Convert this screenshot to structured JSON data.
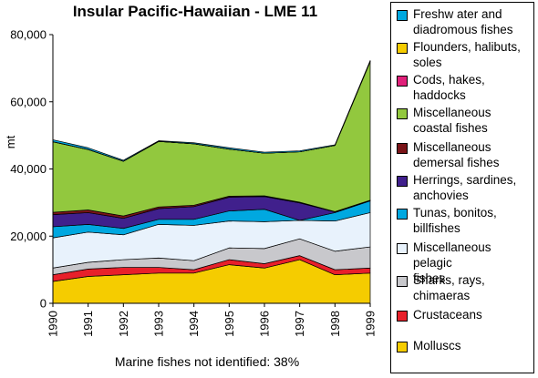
{
  "chart_data": {
    "type": "area",
    "stacked": true,
    "title": "Insular Pacific-Hawaiian - LME 11",
    "ylabel": "mt",
    "xlabel": "",
    "x": [
      "1990",
      "1991",
      "1992",
      "1993",
      "1994",
      "1995",
      "1996",
      "1997",
      "1998",
      "1999"
    ],
    "yticks": [
      "0",
      "20,000",
      "40,000",
      "60,000",
      "80,000"
    ],
    "ylim": [
      0,
      80000
    ],
    "grid": false,
    "legend_position": "right",
    "note": "Marine fishes not identified: 38%",
    "series": [
      {
        "name": "Molluscs",
        "color": "#F5CC00",
        "values": [
          6500,
          8000,
          8500,
          9000,
          9000,
          11500,
          10500,
          13000,
          8500,
          9000
        ]
      },
      {
        "name": "Crustaceans",
        "color": "#E8202A",
        "values": [
          2000,
          2200,
          2200,
          1700,
          1000,
          1500,
          1300,
          1200,
          1500,
          1500
        ]
      },
      {
        "name": "Sharks, rays, chimaeras",
        "color": "#C8C8CC",
        "values": [
          2000,
          2000,
          2300,
          2800,
          2700,
          3500,
          4500,
          5000,
          5500,
          6300
        ]
      },
      {
        "name": "Miscellaneous pelagic fishes",
        "color": "#E8F2FC",
        "values": [
          9000,
          9000,
          7400,
          10000,
          10500,
          8000,
          8000,
          5500,
          9000,
          10200
        ]
      },
      {
        "name": "Tunas, bonitos, billfishes",
        "color": "#00A8E0",
        "values": [
          3300,
          2300,
          1900,
          1500,
          1800,
          3000,
          3700,
          0,
          2500,
          3500
        ]
      },
      {
        "name": "Herrings, sardines, anchovies",
        "color": "#40208C",
        "values": [
          3600,
          3500,
          3000,
          3200,
          3800,
          4100,
          3800,
          5200,
          200,
          100
        ]
      },
      {
        "name": "Miscellaneous demersal fishes",
        "color": "#7A1418",
        "values": [
          700,
          800,
          700,
          500,
          400,
          300,
          200,
          200,
          100,
          100
        ]
      },
      {
        "name": "Miscellaneous coastal fishes",
        "color": "#92C83E",
        "values": [
          21000,
          18000,
          16300,
          19500,
          18300,
          14000,
          12700,
          15000,
          19700,
          41300
        ]
      },
      {
        "name": "Cods, hakes, haddocks",
        "color": "#E0207A",
        "values": [
          0,
          0,
          0,
          0,
          0,
          0,
          0,
          0,
          0,
          0
        ]
      },
      {
        "name": "Flounders, halibuts, soles",
        "color": "#F5CC00",
        "values": [
          0,
          0,
          0,
          0,
          0,
          0,
          0,
          0,
          0,
          0
        ]
      },
      {
        "name": "Freshwater and diadromous fishes",
        "color": "#00A8E0",
        "values": [
          600,
          500,
          300,
          200,
          300,
          400,
          300,
          300,
          200,
          300
        ]
      }
    ],
    "legend": [
      {
        "lines": [
          "Freshw ater and",
          "diadromous fishes"
        ],
        "color": "#00A8E0"
      },
      {
        "lines": [
          "Flounders, halibuts,",
          "soles"
        ],
        "color": "#F5CC00"
      },
      {
        "lines": [
          "Cods, hakes,",
          "haddocks"
        ],
        "color": "#E0207A"
      },
      {
        "lines": [
          "Miscellaneous",
          "coastal fishes"
        ],
        "color": "#92C83E"
      },
      {
        "lines": [
          "Miscellaneous",
          "demersal fishes"
        ],
        "color": "#7A1418"
      },
      {
        "lines": [
          "Herrings, sardines,",
          "anchovies"
        ],
        "color": "#40208C"
      },
      {
        "lines": [
          "Tunas, bonitos,",
          "billfishes"
        ],
        "color": "#00A8E0"
      },
      {
        "lines": [
          "Miscellaneous pelagic",
          "fishes"
        ],
        "color": "#E8F2FC"
      },
      {
        "lines": [
          "Sharks, rays,",
          "chimaeras"
        ],
        "color": "#C8C8CC"
      },
      {
        "lines": [
          "Crustaceans"
        ],
        "color": "#E8202A"
      },
      {
        "lines": [
          "Molluscs"
        ],
        "color": "#F5CC00"
      }
    ]
  }
}
